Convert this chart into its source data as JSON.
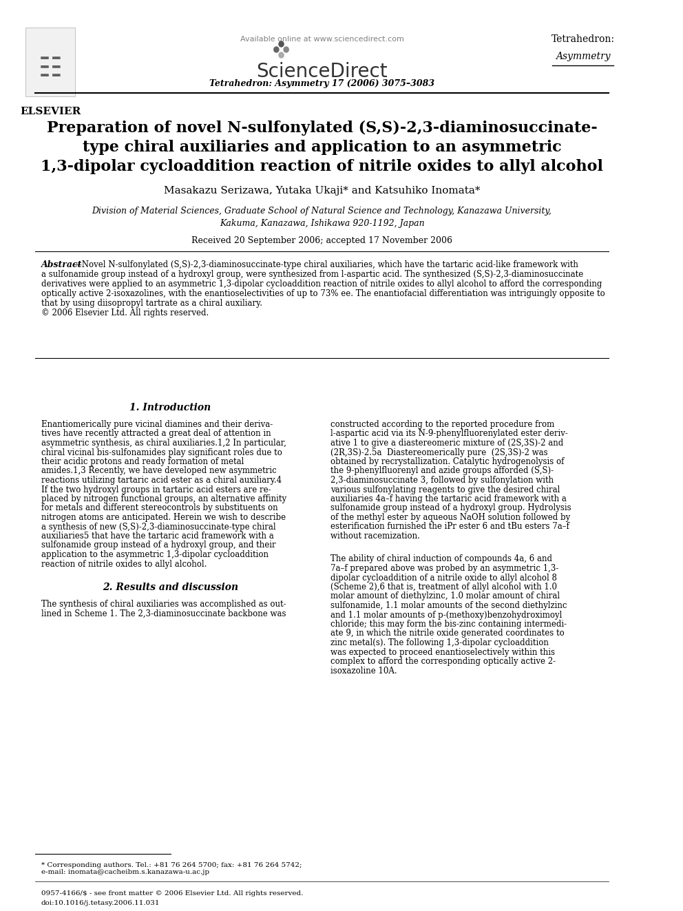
{
  "bg_color": "#ffffff",
  "header": {
    "available_online": "Available online at www.sciencedirect.com",
    "sciencedirect": "ScienceDirect",
    "journal_right_top": "Tetrahedron:",
    "journal_right_italic": "Asymmetry",
    "elsevier_text": "ELSEVIER",
    "journal_citation": "Tetrahedron: Asymmetry 17 (2006) 3075–3083"
  },
  "title_line1": "Preparation of novel N-sulfonylated (S,S)-2,3-diaminosuccinate-",
  "title_line2": "type chiral auxiliaries and application to an asymmetric",
  "title_line3": "1,3-dipolar cycloaddition reaction of nitrile oxides to allyl alcohol",
  "authors": "Masakazu Serizawa, Yutaka Ukaji* and Katsuhiko Inomata*",
  "affiliation1": "Division of Material Sciences, Graduate School of Natural Science and Technology, Kanazawa University,",
  "affiliation2": "Kakuma, Kanazawa, Ishikawa 920-1192, Japan",
  "received": "Received 20 September 2006; accepted 17 November 2006",
  "abstract_label": "Abstract",
  "abstract_text": "—Novel N-sulfonylated (S,S)-2,3-diaminosuccinate-type chiral auxiliaries, which have the tartaric acid-like framework with\na sulfonamide group instead of a hydroxyl group, were synthesized from l-aspartic acid. The synthesized (S,S)-2,3-diaminosuccinate\nderivatives were applied to an asymmetric 1,3-dipolar cycloaddition reaction of nitrile oxides to allyl alcohol to afford the corresponding\noptically active 2-isoxazolines, with the enantioselectivities of up to 73% ee. The enantiofacial differentiation was intriguingly opposite to\nthat by using diisopropyl tartrate as a chiral auxiliary.\n© 2006 Elsevier Ltd. All rights reserved.",
  "section1_title": "1. Introduction",
  "section1_col1": "Enantiomerically pure vicinal diamines and their deriva-\ntives have recently attracted a great deal of attention in\nasymmetric synthesis, as chiral auxiliaries.1,2 In particular,\nchiral vicinal bis-sulfonamides play significant roles due to\ntheir acidic protons and ready formation of metal\namides.1,3 Recently, we have developed new asymmetric\nreactions utilizing tartaric acid ester as a chiral auxiliary.4\nIf the two hydroxyl groups in tartaric acid esters are re-\nplaced by nitrogen functional groups, an alternative affinity\nfor metals and different stereocontrols by substituents on\nnitrogen atoms are anticipated. Herein we wish to describe\na synthesis of new (S,S)-2,3-diaminosuccinate-type chiral\nauxiliaries5 that have the tartaric acid framework with a\nsulfonamide group instead of a hydroxyl group, and their\napplication to the asymmetric 1,3-dipolar cycloaddition\nreaction of nitrile oxides to allyl alcohol.",
  "section2_title": "2. Results and discussion",
  "section2_col1": "The synthesis of chiral auxiliaries was accomplished as out-\nlined in Scheme 1. The 2,3-diaminosuccinate backbone was",
  "section1_col2": "constructed according to the reported procedure from\nl-aspartic acid via its N-9-phenylfluorenylated ester deriv-\native 1 to give a diastereomeric mixture of (2S,3S)-2 and\n(2R,3S)-2.5a  Diastereomerically pure (2S,3S)-2 was\nobtained by recrystallization. Catalytic hydrogenolysis of\nthe 9-phenylfluorenyl and azide groups afforded (S,S)-\n2,3-diaminosuccinate 3, followed by sulfonylation with\nvarious sulfonylating reagents to give the desired chiral\nauxiliaries 4a–f having the tartaric acid framework with a\nsulfonamide group instead of a hydroxyl group. Hydrolysis\nof the methyl ester by aqueous NaOH solution followed by\nesterification furnished the iPr ester 6 and tBu esters 7a–f\nwithout racemization.",
  "section2_col2": "The ability of chiral induction of compounds 4a, 6 and\n7a–f prepared above was probed by an asymmetric 1,3-\ndipolar cycloaddition of a nitrile oxide to allyl alcohol 8\n(Scheme 2),6 that is, treatment of allyl alcohol with 1.0\nmolar amount of diethylzinc, 1.0 molar amount of chiral\nsulfonamide, 1.1 molar amounts of the second diethylzinc\nand 1.1 molar amounts of p-(methoxy)benzohydroximoyl\nchloride; this may form the bis-zinc containing intermedi-\nate 9, in which the nitrile oxide generated coordinates to\nzinc metal(s). The following 1,3-dipolar cycloaddition\nwas expected to proceed enantioselectively within this\ncomplex to afford the corresponding optically active 2-\nisoxazoline 10A.",
  "footnote_star": "* Corresponding authors. Tel.: +81 76 264 5700; fax: +81 76 264 5742;\ne-mail: inomata@cacheibm.s.kanazawa-u.ac.jp",
  "footer_issn": "0957-4166/$ - see front matter © 2006 Elsevier Ltd. All rights reserved.",
  "footer_doi": "doi:10.1016/j.tetasy.2006.11.031"
}
